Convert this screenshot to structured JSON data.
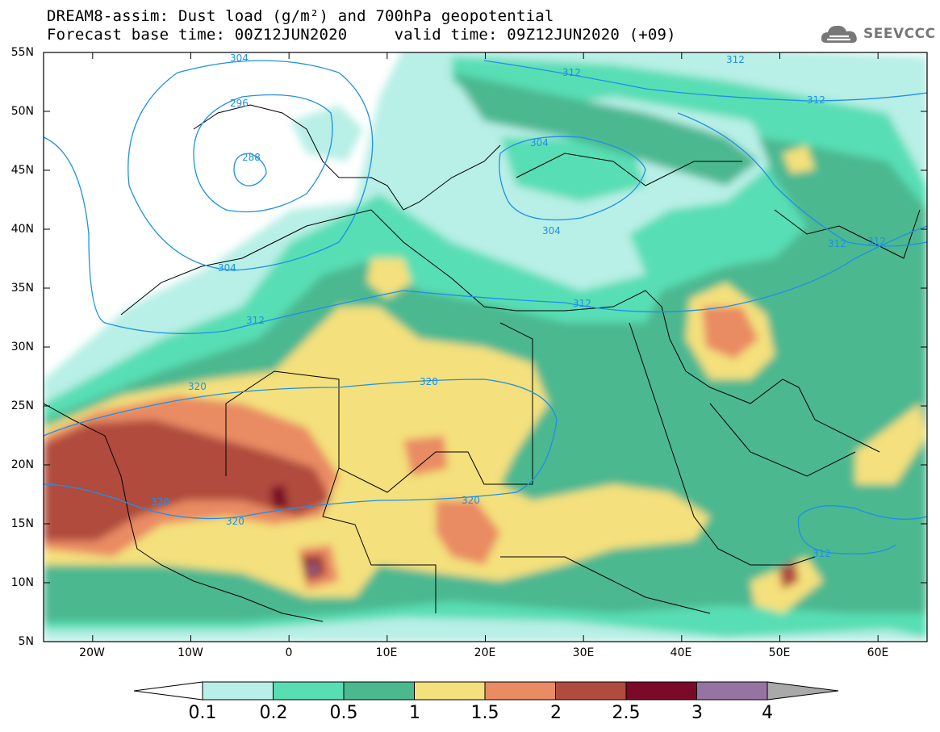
{
  "title_line1": "DREAM8-assim: Dust load (g/m²) and 700hPa geopotential",
  "title_line2": "Forecast base time: 00Z12JUN2020     valid time: 09Z12JUN2020 (+09)",
  "logo": {
    "text": "SEEVCCC",
    "icon": "cloud-logo-icon"
  },
  "axes": {
    "lat_labels": [
      "55N",
      "50N",
      "45N",
      "40N",
      "35N",
      "30N",
      "25N",
      "20N",
      "15N",
      "10N",
      "5N"
    ],
    "lon_labels": [
      "20W",
      "10W",
      "0",
      "10E",
      "20E",
      "30E",
      "40E",
      "50E",
      "60E"
    ],
    "lat_range": [
      5,
      55
    ],
    "lon_range": [
      -25,
      65
    ]
  },
  "colorbar": {
    "labels": [
      "0.1",
      "0.2",
      "0.5",
      "1",
      "1.5",
      "2",
      "2.5",
      "3",
      "4"
    ],
    "colors": [
      "#b8efe6",
      "#59deb4",
      "#4bb890",
      "#f4e07c",
      "#e98b63",
      "#b04c3e",
      "#7a0a28",
      "#9773a3"
    ],
    "under_color": "#ffffff",
    "over_color": "#a9a9a9"
  },
  "contours": {
    "labels": [
      "304",
      "296",
      "288",
      "304",
      "312",
      "304",
      "304",
      "312",
      "312",
      "312",
      "312",
      "312",
      "312",
      "320",
      "320",
      "320",
      "320",
      "320",
      "312"
    ]
  }
}
